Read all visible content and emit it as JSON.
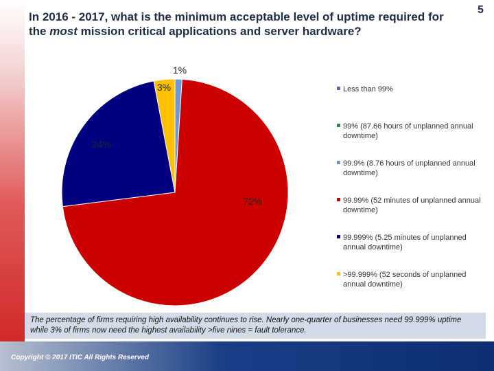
{
  "slide": {
    "title_part1": "In 2016 - 2017, what is the minimum acceptable level of uptime required for the ",
    "title_em": "most",
    "title_part2": " mission critical applications and server hardware?",
    "page_number": "5",
    "note": "The percentage of firms requiring high availability continues to rise. Nearly one-quarter of businesses need 99.999% uptime while 3% of firms now need the highest availability >five nines = fault tolerance.",
    "copyright": "Copyright © 2017 ITIC All Rights Reserved"
  },
  "chart_data": {
    "type": "pie",
    "categories": [
      "Less than 99%",
      "99% (87.66 hours of unplanned annual downtime)",
      "99.9% (8.76 hours of unplanned annual downtime)",
      "99.99% (52 minutes of unplanned annual downtime)",
      "99.999% (5.25 minutes of unplanned annual downtime)",
      ">99.999% (52 seconds of unplanned annual downtime)"
    ],
    "values": [
      0,
      0,
      1,
      72,
      24,
      3
    ],
    "labels": [
      "",
      "",
      "1%",
      "72%",
      "24%",
      "3%"
    ],
    "colors": [
      "#7b5aa6",
      "#2e8b3e",
      "#6f97d4",
      "#cc0000",
      "#000080",
      "#ffc000"
    ],
    "start_at_top": true,
    "direction": "clockwise",
    "legend_position": "right"
  }
}
